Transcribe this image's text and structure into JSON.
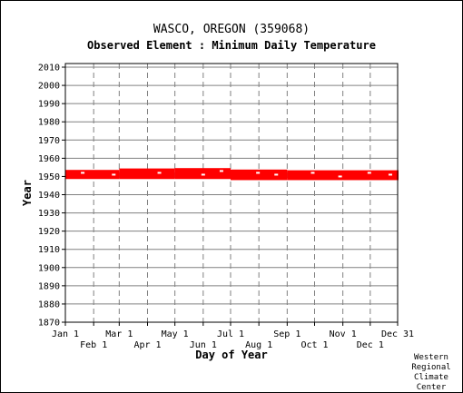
{
  "page": {
    "title": "WASCO, OREGON   (359068)",
    "subtitle": "Observed Element : Minimum Daily Temperature",
    "credit_lines": [
      "Western",
      "Regional",
      "Climate",
      "Center"
    ]
  },
  "chart_data": {
    "type": "scatter",
    "title": "WASCO, OREGON   (359068)",
    "subtitle": "Observed Element : Minimum Daily Temperature",
    "xlabel": "Day of Year",
    "ylabel": "Year",
    "xlim": [
      1,
      365
    ],
    "ylim": [
      1870,
      2012
    ],
    "grid": true,
    "x_tick_labels_upper": [
      {
        "label": "Jan 1",
        "day": 1
      },
      {
        "label": "Mar 1",
        "day": 60
      },
      {
        "label": "May 1",
        "day": 121
      },
      {
        "label": "Jul 1",
        "day": 182
      },
      {
        "label": "Sep 1",
        "day": 244
      },
      {
        "label": "Nov 1",
        "day": 305
      },
      {
        "label": "Dec 31",
        "day": 365
      }
    ],
    "x_tick_labels_lower": [
      {
        "label": "Feb 1",
        "day": 32
      },
      {
        "label": "Apr 1",
        "day": 91
      },
      {
        "label": "Jun 1",
        "day": 152
      },
      {
        "label": "Aug 1",
        "day": 213
      },
      {
        "label": "Oct 1",
        "day": 274
      },
      {
        "label": "Dec 1",
        "day": 335
      }
    ],
    "y_ticks": [
      1870,
      1880,
      1890,
      1900,
      1910,
      1920,
      1930,
      1940,
      1950,
      1960,
      1970,
      1980,
      1990,
      2000,
      2010
    ],
    "series": [
      {
        "color": "#ff0000",
        "description_period_of_record": [
          1948,
          1954
        ],
        "segments": [
          {
            "x": [
              1,
              59
            ],
            "y": [
              1948.6,
              1953.6
            ]
          },
          {
            "x": [
              60,
              120
            ],
            "y": [
              1948.6,
              1954.4
            ]
          },
          {
            "x": [
              121,
              181
            ],
            "y": [
              1948.6,
              1954.6
            ]
          },
          {
            "x": [
              182,
              243
            ],
            "y": [
              1948.0,
              1953.8
            ]
          },
          {
            "x": [
              244,
              365
            ],
            "y": [
              1948.0,
              1953.4
            ]
          }
        ],
        "gaps": [
          {
            "x": 18,
            "y": 1952
          },
          {
            "x": 52,
            "y": 1951
          },
          {
            "x": 102,
            "y": 1952
          },
          {
            "x": 150,
            "y": 1951
          },
          {
            "x": 170,
            "y": 1953
          },
          {
            "x": 210,
            "y": 1952
          },
          {
            "x": 230,
            "y": 1951
          },
          {
            "x": 270,
            "y": 1952
          },
          {
            "x": 300,
            "y": 1950
          },
          {
            "x": 332,
            "y": 1952
          },
          {
            "x": 355,
            "y": 1951
          }
        ]
      }
    ]
  }
}
